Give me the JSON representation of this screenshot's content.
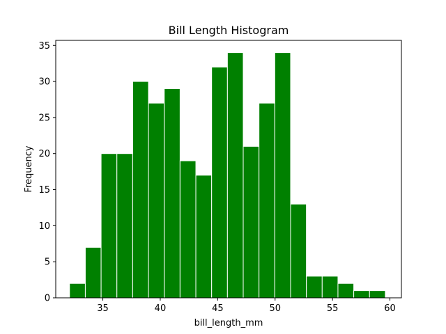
{
  "chart_data": {
    "type": "bar",
    "title": "Bill Length Histogram",
    "xlabel": "bill_length_mm",
    "ylabel": "Frequency",
    "xlim": [
      30.9,
      61.0
    ],
    "ylim": [
      0,
      35.7
    ],
    "xticks": [
      35,
      40,
      45,
      50,
      55,
      60
    ],
    "yticks": [
      0,
      5,
      10,
      15,
      20,
      25,
      30,
      35
    ],
    "bin_start": 32.1,
    "bin_width": 1.375,
    "values": [
      2,
      7,
      20,
      20,
      30,
      27,
      29,
      19,
      17,
      32,
      34,
      21,
      27,
      34,
      13,
      3,
      3,
      2,
      1,
      1
    ],
    "bar_color": "#008000",
    "edge_color": "#ffffff",
    "grid": false,
    "legend": "none"
  }
}
